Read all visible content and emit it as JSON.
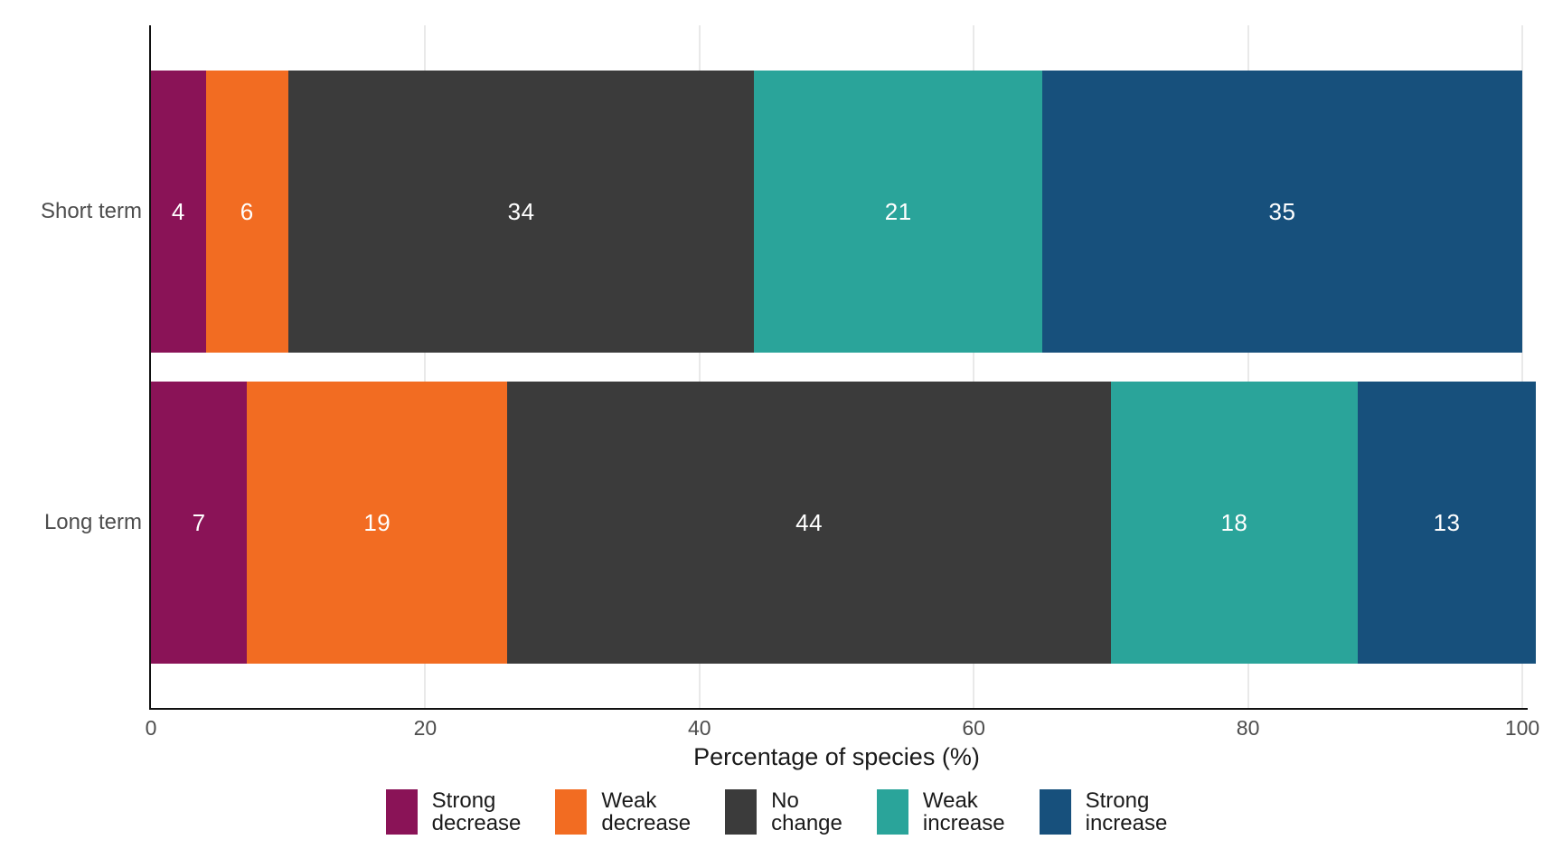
{
  "chart_data": {
    "type": "bar",
    "variant": "stacked-horizontal",
    "title": "",
    "xlabel": "Percentage of species (%)",
    "ylabel": "",
    "categories": [
      "Short term",
      "Long term"
    ],
    "series": [
      {
        "name": "Strong decrease",
        "color": "#8A1357",
        "values": [
          4,
          7
        ]
      },
      {
        "name": "Weak decrease",
        "color": "#F26C22",
        "values": [
          6,
          19
        ]
      },
      {
        "name": "No change",
        "color": "#3B3B3B",
        "values": [
          34,
          44
        ]
      },
      {
        "name": "Weak increase",
        "color": "#2AA49A",
        "values": [
          21,
          18
        ]
      },
      {
        "name": "Strong increase",
        "color": "#17507C",
        "values": [
          35,
          13
        ]
      }
    ],
    "xlim": [
      0,
      100
    ],
    "xticks": [
      0,
      20,
      40,
      60,
      80,
      100
    ],
    "bar_value_labels": true,
    "grid": "vertical-major",
    "legend_position": "bottom"
  },
  "colors": {
    "background": "#ffffff",
    "axis_line": "#111111",
    "gridline": "#e9e9e9",
    "tick_label": "#4d4d4d",
    "category_label": "#4d4d4d",
    "axis_title": "#1a1a1a",
    "legend_text": "#1a1a1a",
    "bar_value_label": "#ffffff"
  }
}
